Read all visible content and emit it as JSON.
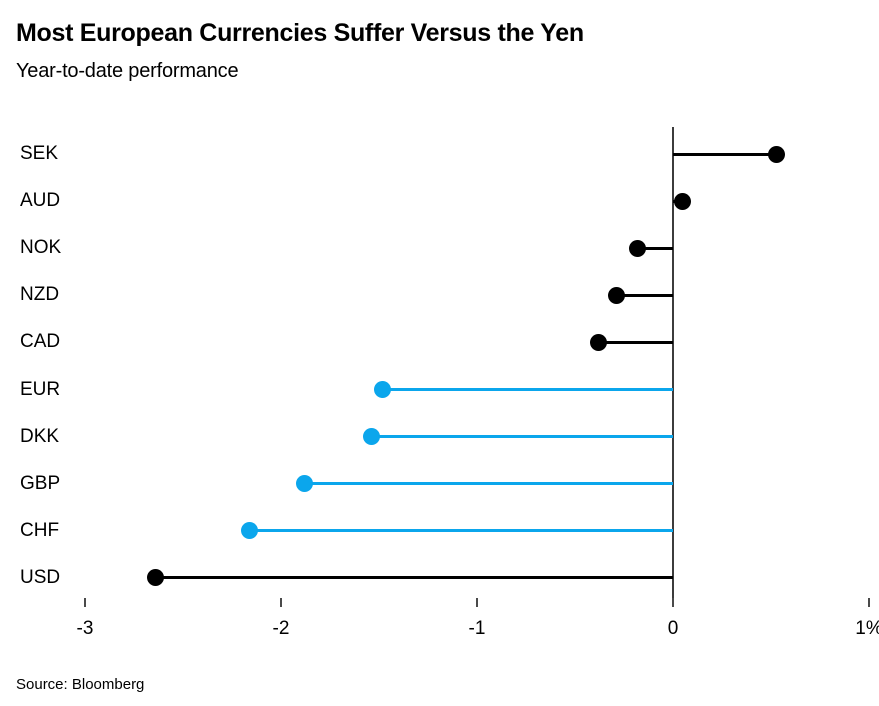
{
  "header": {
    "title": "Most European Currencies Suffer Versus the Yen",
    "subtitle": "Year-to-date performance"
  },
  "footer": {
    "source": "Source: Bloomberg"
  },
  "colors": {
    "background": "#ffffff",
    "text": "#000000",
    "default_series": "#000000",
    "european_highlight": "#0ba6ec",
    "axis_line": "#3c3c3c",
    "tick_mark": "#4a4a4a"
  },
  "chart_data": {
    "type": "bar",
    "variant": "horizontal-lollipop",
    "title": "Most European Currencies Suffer Versus the Yen",
    "subtitle": "Year-to-date performance",
    "categories": [
      "SEK",
      "AUD",
      "NOK",
      "NZD",
      "CAD",
      "EUR",
      "DKK",
      "GBP",
      "CHF",
      "USD"
    ],
    "values": [
      0.53,
      0.05,
      -0.18,
      -0.29,
      -0.38,
      -1.48,
      -1.54,
      -1.88,
      -2.16,
      -2.64
    ],
    "point_colors": [
      "#000000",
      "#000000",
      "#000000",
      "#000000",
      "#000000",
      "#0ba6ec",
      "#0ba6ec",
      "#0ba6ec",
      "#0ba6ec",
      "#000000"
    ],
    "unit": "%",
    "xlabel": "",
    "ylabel": "",
    "xlim": [
      -3.2,
      1.05
    ],
    "xticks": [
      -3,
      -2,
      -1,
      0,
      1
    ],
    "xtick_labels": [
      "-3",
      "-2",
      "-1",
      "0",
      "1%"
    ],
    "zero_baseline": true,
    "grid": false,
    "legend": false
  }
}
